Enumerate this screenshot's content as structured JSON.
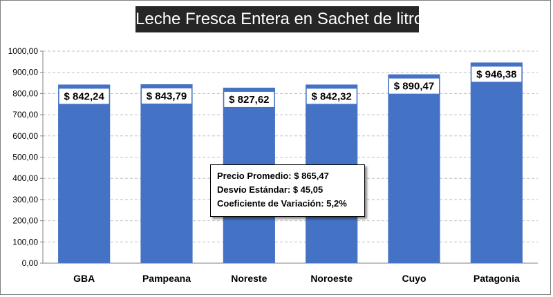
{
  "chart_data": {
    "type": "bar",
    "title": "Leche Fresca Entera en Sachet de litro",
    "categories": [
      "GBA",
      "Pampeana",
      "Noreste",
      "Noroeste",
      "Cuyo",
      "Patagonia"
    ],
    "values": [
      842.24,
      843.79,
      827.62,
      842.32,
      890.47,
      946.38
    ],
    "data_labels": [
      "$ 842,24",
      "$ 843,79",
      "$ 827,62",
      "$ 842,32",
      "$ 890,47",
      "$ 946,38"
    ],
    "yticks": [
      "0,00",
      "100,00",
      "200,00",
      "300,00",
      "400,00",
      "500,00",
      "600,00",
      "700,00",
      "800,00",
      "900,00",
      "1000,00"
    ],
    "ylim": [
      0,
      1000
    ],
    "grid": true,
    "xlabel": "",
    "ylabel": "",
    "bar_color": "#4472c4",
    "grid_color": "#bfbfbf",
    "annotation": {
      "lines": [
        "Precio Promedio: $ 865,47",
        "Desvío Estándar: $ 45,05",
        "Coeficiente de Variación: 5,2%"
      ]
    }
  }
}
